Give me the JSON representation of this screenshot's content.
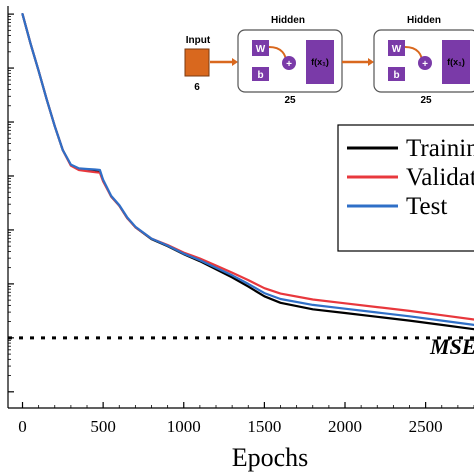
{
  "chart_data": {
    "type": "line",
    "xlabel": "Epochs",
    "ylabel": "",
    "xlim": [
      -90,
      2800
    ],
    "x_ticks": [
      "0",
      "500",
      "1000",
      "1500",
      "2000",
      "2500"
    ],
    "y_scale": "log",
    "ylim_log10": [
      -7.3,
      0.15
    ],
    "series": [
      {
        "name": "Training",
        "color": "#000000",
        "x": [
          0,
          50,
          100,
          150,
          200,
          250,
          300,
          350,
          400,
          450,
          480,
          500,
          550,
          600,
          650,
          700,
          800,
          900,
          1000,
          1100,
          1200,
          1300,
          1400,
          1500,
          1600,
          1800,
          2000,
          2200,
          2400,
          2600,
          2800
        ],
        "log10_y": [
          0.0,
          -0.55,
          -1.05,
          -1.58,
          -2.08,
          -2.52,
          -2.8,
          -2.87,
          -2.88,
          -2.9,
          -2.91,
          -3.08,
          -3.38,
          -3.55,
          -3.78,
          -3.95,
          -4.17,
          -4.3,
          -4.45,
          -4.58,
          -4.73,
          -4.88,
          -5.05,
          -5.23,
          -5.35,
          -5.47,
          -5.54,
          -5.61,
          -5.68,
          -5.76,
          -5.84
        ]
      },
      {
        "name": "Validation",
        "color": "#e8383d",
        "x": [
          0,
          50,
          100,
          150,
          200,
          250,
          300,
          350,
          400,
          450,
          480,
          500,
          550,
          600,
          650,
          700,
          800,
          900,
          1000,
          1100,
          1200,
          1300,
          1400,
          1500,
          1600,
          1800,
          2000,
          2200,
          2400,
          2600,
          2800
        ],
        "log10_y": [
          0.0,
          -0.55,
          -1.05,
          -1.58,
          -2.08,
          -2.52,
          -2.81,
          -2.89,
          -2.91,
          -2.93,
          -2.94,
          -3.1,
          -3.38,
          -3.55,
          -3.78,
          -3.95,
          -4.16,
          -4.28,
          -4.42,
          -4.53,
          -4.66,
          -4.79,
          -4.93,
          -5.08,
          -5.18,
          -5.29,
          -5.36,
          -5.43,
          -5.5,
          -5.58,
          -5.66
        ]
      },
      {
        "name": "Test",
        "color": "#2f6fc7",
        "x": [
          0,
          50,
          100,
          150,
          200,
          250,
          300,
          350,
          400,
          450,
          480,
          500,
          550,
          600,
          650,
          700,
          800,
          900,
          1000,
          1100,
          1200,
          1300,
          1400,
          1500,
          1600,
          1800,
          2000,
          2200,
          2400,
          2600,
          2800
        ],
        "log10_y": [
          0.0,
          -0.55,
          -1.05,
          -1.58,
          -2.08,
          -2.52,
          -2.79,
          -2.86,
          -2.87,
          -2.88,
          -2.89,
          -3.07,
          -3.37,
          -3.54,
          -3.77,
          -3.94,
          -4.16,
          -4.29,
          -4.44,
          -4.56,
          -4.7,
          -4.84,
          -5.0,
          -5.17,
          -5.28,
          -5.39,
          -5.46,
          -5.53,
          -5.6,
          -5.68,
          -5.76
        ]
      }
    ],
    "goal_line": {
      "log10_y": -6.0,
      "style": "dotted",
      "color": "#000000"
    },
    "annotation": "MSE",
    "legend_position": "right"
  },
  "network": {
    "input_label": "Input",
    "input_size": "6",
    "hidden1_label": "Hidden",
    "hidden1_size": "25",
    "hidden2_label": "Hidden",
    "hidden2_size": "25",
    "weight_symbol": "W",
    "bias_symbol": "b",
    "sum_symbol": "+",
    "activation_symbol": "f(x₁)",
    "colors": {
      "input": "#d9681e",
      "weights": "#7a3aa8",
      "arrow": "#d9681e",
      "box_border": "#555555"
    }
  }
}
